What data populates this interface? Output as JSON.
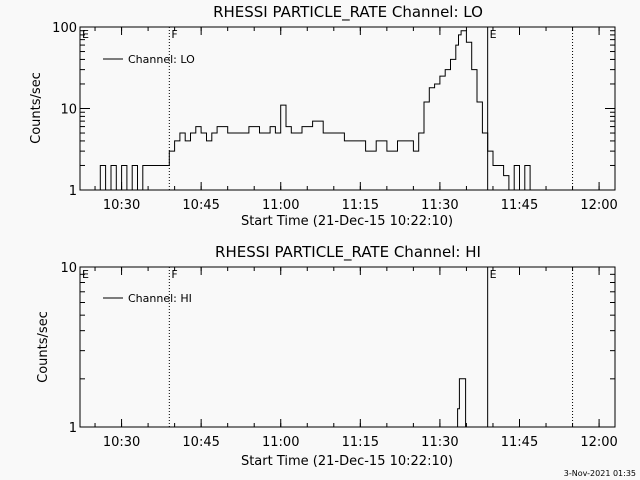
{
  "footer_timestamp": "3-Nov-2021 01:35",
  "chart_data": [
    {
      "type": "line",
      "title": "RHESSI PARTICLE_RATE Channel: LO",
      "xlabel": "Start Time (21-Dec-15 10:22:10)",
      "ylabel": "Counts/sec",
      "y_scale": "log",
      "ylim": [
        1,
        100
      ],
      "y_ticks": [
        1,
        10,
        100
      ],
      "y_tick_labels": [
        "1",
        "10",
        "100"
      ],
      "xlim": [
        "10:22:10",
        "12:03"
      ],
      "x_ticks": [
        "10:30",
        "10:45",
        "11:00",
        "11:15",
        "11:30",
        "11:45",
        "12:00"
      ],
      "legend": {
        "entries": [
          "Channel: LO"
        ],
        "placement": "top-left"
      },
      "markers": [
        {
          "label": "E",
          "time": "10:22:10",
          "style": "solid"
        },
        {
          "label": "F",
          "time": "10:39",
          "style": "dotted"
        },
        {
          "label": "E",
          "time": "11:39",
          "style": "solid"
        },
        {
          "label": "",
          "time": "11:55",
          "style": "dotted"
        }
      ],
      "series": [
        {
          "name": "Channel: LO",
          "x": [
            "10:25",
            "10:26",
            "10:27",
            "10:28",
            "10:29",
            "10:30",
            "10:31",
            "10:32",
            "10:33",
            "10:34",
            "10:35",
            "10:36",
            "10:37",
            "10:38",
            "10:38:30",
            "10:39",
            "10:40",
            "10:41",
            "10:42",
            "10:43",
            "10:44",
            "10:45",
            "10:46",
            "10:47",
            "10:48",
            "10:50",
            "10:52",
            "10:54",
            "10:56",
            "10:58",
            "10:59",
            "11:00",
            "11:01",
            "11:02",
            "11:04",
            "11:06",
            "11:08",
            "11:10",
            "11:12",
            "11:14",
            "11:16",
            "11:18",
            "11:20",
            "11:22",
            "11:24",
            "11:25",
            "11:26",
            "11:27",
            "11:28",
            "11:29",
            "11:30",
            "11:31",
            "11:32",
            "11:33",
            "11:33:30",
            "11:34",
            "11:35",
            "11:36",
            "11:37",
            "11:38",
            "11:39",
            "11:40",
            "11:41",
            "11:42",
            "11:43",
            "11:44",
            "11:45",
            "11:46",
            "11:47",
            "11:48"
          ],
          "y": [
            1,
            2,
            1,
            2,
            1,
            2,
            1,
            2,
            1,
            2,
            2,
            2,
            2,
            2,
            2,
            3,
            4,
            5,
            4,
            5,
            6,
            5,
            4,
            5,
            6,
            5,
            5,
            6,
            5,
            6,
            5,
            11,
            6,
            5,
            6,
            7,
            5,
            5,
            4,
            4,
            3,
            4,
            3,
            4,
            4,
            3,
            5,
            12,
            18,
            20,
            25,
            30,
            40,
            60,
            80,
            90,
            65,
            30,
            12,
            5,
            3,
            2,
            2,
            1.5,
            1,
            2,
            1,
            2,
            1,
            1
          ]
        }
      ]
    },
    {
      "type": "line",
      "title": "RHESSI PARTICLE_RATE Channel: HI",
      "xlabel": "Start Time (21-Dec-15 10:22:10)",
      "ylabel": "Counts/sec",
      "y_scale": "log",
      "ylim": [
        1,
        10
      ],
      "y_ticks": [
        1,
        10
      ],
      "y_tick_labels": [
        "1",
        "10"
      ],
      "xlim": [
        "10:22:10",
        "12:03"
      ],
      "x_ticks": [
        "10:30",
        "10:45",
        "11:00",
        "11:15",
        "11:30",
        "11:45",
        "12:00"
      ],
      "legend": {
        "entries": [
          "Channel: HI"
        ],
        "placement": "top-left"
      },
      "markers": [
        {
          "label": "E",
          "time": "10:22:10",
          "style": "solid"
        },
        {
          "label": "F",
          "time": "10:39",
          "style": "dotted"
        },
        {
          "label": "E",
          "time": "11:39",
          "style": "solid"
        },
        {
          "label": "",
          "time": "11:55",
          "style": "dotted"
        }
      ],
      "series": [
        {
          "name": "Channel: HI",
          "x": [
            "11:33",
            "11:33:20",
            "11:33:40",
            "11:34:30",
            "11:34:50"
          ],
          "y": [
            1,
            1.3,
            2,
            2,
            1
          ]
        }
      ]
    }
  ]
}
